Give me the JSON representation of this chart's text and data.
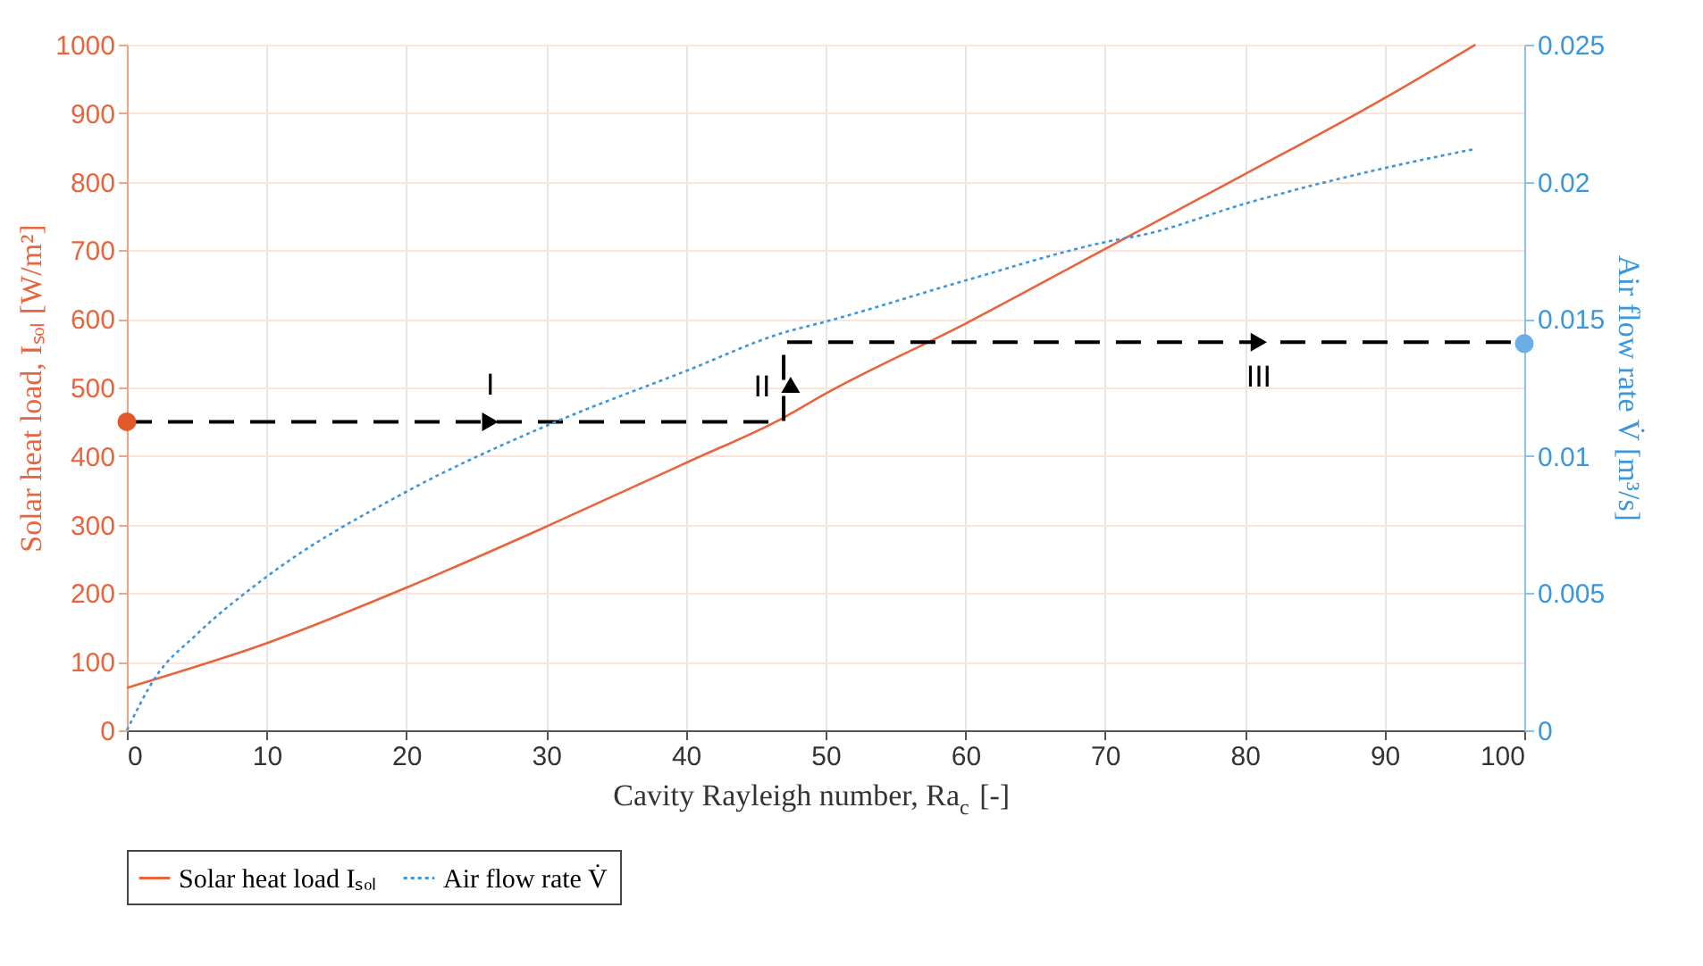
{
  "chart_data": {
    "type": "line",
    "xlabel": "Cavity Rayleigh number, Ra$_{c}$ [-]",
    "ylabel": "Solar heat load, Iₛₒₗ [W/m²]",
    "y2label": "Air flow rate V̇ [m³/s]",
    "xlim": [
      0,
      100
    ],
    "xticks": [
      0,
      10,
      20,
      30,
      40,
      50,
      60,
      70,
      80,
      90,
      100
    ],
    "ylim": [
      0,
      1000
    ],
    "yticks": [
      0,
      100,
      200,
      300,
      400,
      500,
      600,
      700,
      800,
      900,
      1000
    ],
    "y2lim": [
      0,
      0.025
    ],
    "y2ticks": [
      0,
      0.005,
      0.01,
      0.015,
      0.02,
      0.025
    ],
    "grid": true,
    "legend": "bottom",
    "series": [
      {
        "name": "Solar heat load Iₛₒₗ",
        "color": "#e8643c",
        "line_style": "solid",
        "marker": "none",
        "x": [
          0,
          10,
          20,
          30,
          40,
          47,
          50,
          60,
          70,
          80,
          90,
          96.5
        ],
        "values": [
          62,
          127,
          208,
          297,
          390,
          456,
          491,
          593,
          702,
          811,
          922,
          1000
        ]
      },
      {
        "name": "Air flow rate V̇",
        "axis": "y2",
        "color": "#3c96dc",
        "line_style": "dotted",
        "marker": "none",
        "x": [
          0,
          2,
          5,
          10,
          20,
          30,
          40,
          47,
          50,
          60,
          70,
          73,
          80,
          90,
          96.5
        ],
        "values": [
          0,
          0.0019,
          0.0035,
          0.0056,
          0.0087,
          0.0111,
          0.0131,
          0.0145,
          0.0149,
          0.0164,
          0.0178,
          0.0181,
          0.0192,
          0.0205,
          0.0212
        ]
      },
      {
        "type": "line",
        "color": "#000000",
        "line_style": "dashed",
        "marker": "none",
        "x": [
          0,
          47,
          47,
          100
        ],
        "values": [
          450,
          450,
          566,
          566
        ]
      },
      {
        "type": "scatter",
        "color": "#000000",
        "marker": "triangle-right",
        "x": [
          26,
          81
        ],
        "values": [
          450,
          566
        ]
      },
      {
        "type": "scatter",
        "color": "#000000",
        "marker": "triangle",
        "x": [
          47.5
        ],
        "values": [
          500
        ]
      },
      {
        "type": "scatter",
        "color": "#e05a28",
        "marker": "circle",
        "x": [
          0
        ],
        "values": [
          450
        ]
      },
      {
        "type": "scatter",
        "axis": "y2",
        "color": "#6aaee6",
        "marker": "circle",
        "x": [
          100
        ],
        "values": [
          0.0141
        ]
      }
    ],
    "annotations": [
      {
        "text": "I",
        "x": 26,
        "y": 450
      },
      {
        "text": "II",
        "x": 47.5,
        "y": 500
      },
      {
        "text": "III",
        "x": 81,
        "y": 566
      }
    ]
  }
}
